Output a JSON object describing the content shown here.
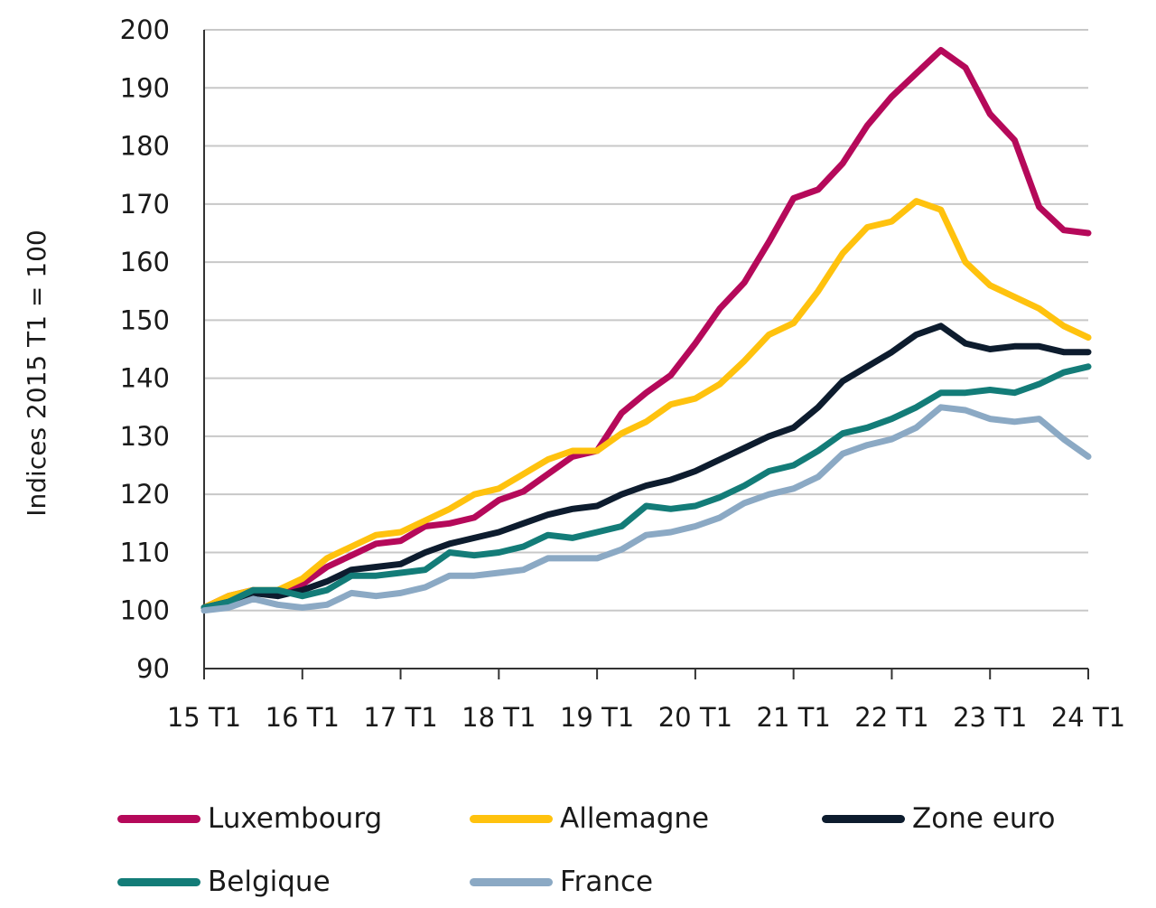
{
  "chart_data": {
    "type": "line",
    "ylabel": "Indices 2015 T1 = 100",
    "xlabel": "",
    "ylim": [
      90,
      200
    ],
    "yticks": [
      90,
      100,
      110,
      120,
      130,
      140,
      150,
      160,
      170,
      180,
      190,
      200
    ],
    "x_tick_labels": [
      "15 T1",
      "16 T1",
      "17 T1",
      "18 T1",
      "19 T1",
      "20 T1",
      "21 T1",
      "22 T1",
      "23 T1",
      "24 T1"
    ],
    "grid": "horizontal",
    "legend_position": "bottom",
    "x": [
      "15 T1",
      "15 T2",
      "15 T3",
      "15 T4",
      "16 T1",
      "16 T2",
      "16 T3",
      "16 T4",
      "17 T1",
      "17 T2",
      "17 T3",
      "17 T4",
      "18 T1",
      "18 T2",
      "18 T3",
      "18 T4",
      "19 T1",
      "19 T2",
      "19 T3",
      "19 T4",
      "20 T1",
      "20 T2",
      "20 T3",
      "20 T4",
      "21 T1",
      "21 T2",
      "21 T3",
      "21 T4",
      "22 T1",
      "22 T2",
      "22 T3",
      "22 T4",
      "23 T1",
      "23 T2",
      "23 T3",
      "23 T4",
      "24 T1"
    ],
    "series": [
      {
        "name": "Luxembourg",
        "color": "#b5095a",
        "values": [
          100.5,
          102.5,
          103.5,
          103,
          104.5,
          107.5,
          109.5,
          111.5,
          112,
          114.5,
          115,
          116,
          119,
          120.5,
          123.5,
          126.5,
          127.5,
          134,
          137.5,
          140.5,
          146,
          152,
          156.5,
          163.5,
          171,
          172.5,
          177,
          183.5,
          188.5,
          192.5,
          196.5,
          193.5,
          185.5,
          181,
          169.5,
          165.5,
          165
        ]
      },
      {
        "name": "Allemagne",
        "color": "#ffc20e",
        "values": [
          100.5,
          102.5,
          103.5,
          103.5,
          105.5,
          109,
          111,
          113,
          113.5,
          115.5,
          117.5,
          120,
          121,
          123.5,
          126,
          127.5,
          127.5,
          130.5,
          132.5,
          135.5,
          136.5,
          139,
          143,
          147.5,
          149.5,
          155,
          161.5,
          166,
          167,
          170.5,
          169,
          160,
          156,
          154,
          152,
          149,
          147
        ]
      },
      {
        "name": "Zone euro",
        "color": "#0d1c2e",
        "values": [
          100.5,
          101.5,
          103,
          102.5,
          103.5,
          105,
          107,
          107.5,
          108,
          110,
          111.5,
          112.5,
          113.5,
          115,
          116.5,
          117.5,
          118,
          120,
          121.5,
          122.5,
          124,
          126,
          128,
          130,
          131.5,
          135,
          139.5,
          142,
          144.5,
          147.5,
          149,
          146,
          145,
          145.5,
          145.5,
          144.5,
          144.5
        ]
      },
      {
        "name": "Belgique",
        "color": "#137c78",
        "values": [
          100.5,
          101.5,
          103.5,
          103.5,
          102.5,
          103.5,
          106,
          106,
          106.5,
          107,
          110,
          109.5,
          110,
          111,
          113,
          112.5,
          113.5,
          114.5,
          118,
          117.5,
          118,
          119.5,
          121.5,
          124,
          125,
          127.5,
          130.5,
          131.5,
          133,
          135,
          137.5,
          137.5,
          138,
          137.5,
          139,
          141,
          142
        ]
      },
      {
        "name": "France",
        "color": "#8ba9c4",
        "values": [
          100,
          100.5,
          102,
          101,
          100.5,
          101,
          103,
          102.5,
          103,
          104,
          106,
          106,
          106.5,
          107,
          109,
          109,
          109,
          110.5,
          113,
          113.5,
          114.5,
          116,
          118.5,
          120,
          121,
          123,
          127,
          128.5,
          129.5,
          131.5,
          135,
          134.5,
          133,
          132.5,
          133,
          129.5,
          126.5
        ]
      }
    ]
  }
}
